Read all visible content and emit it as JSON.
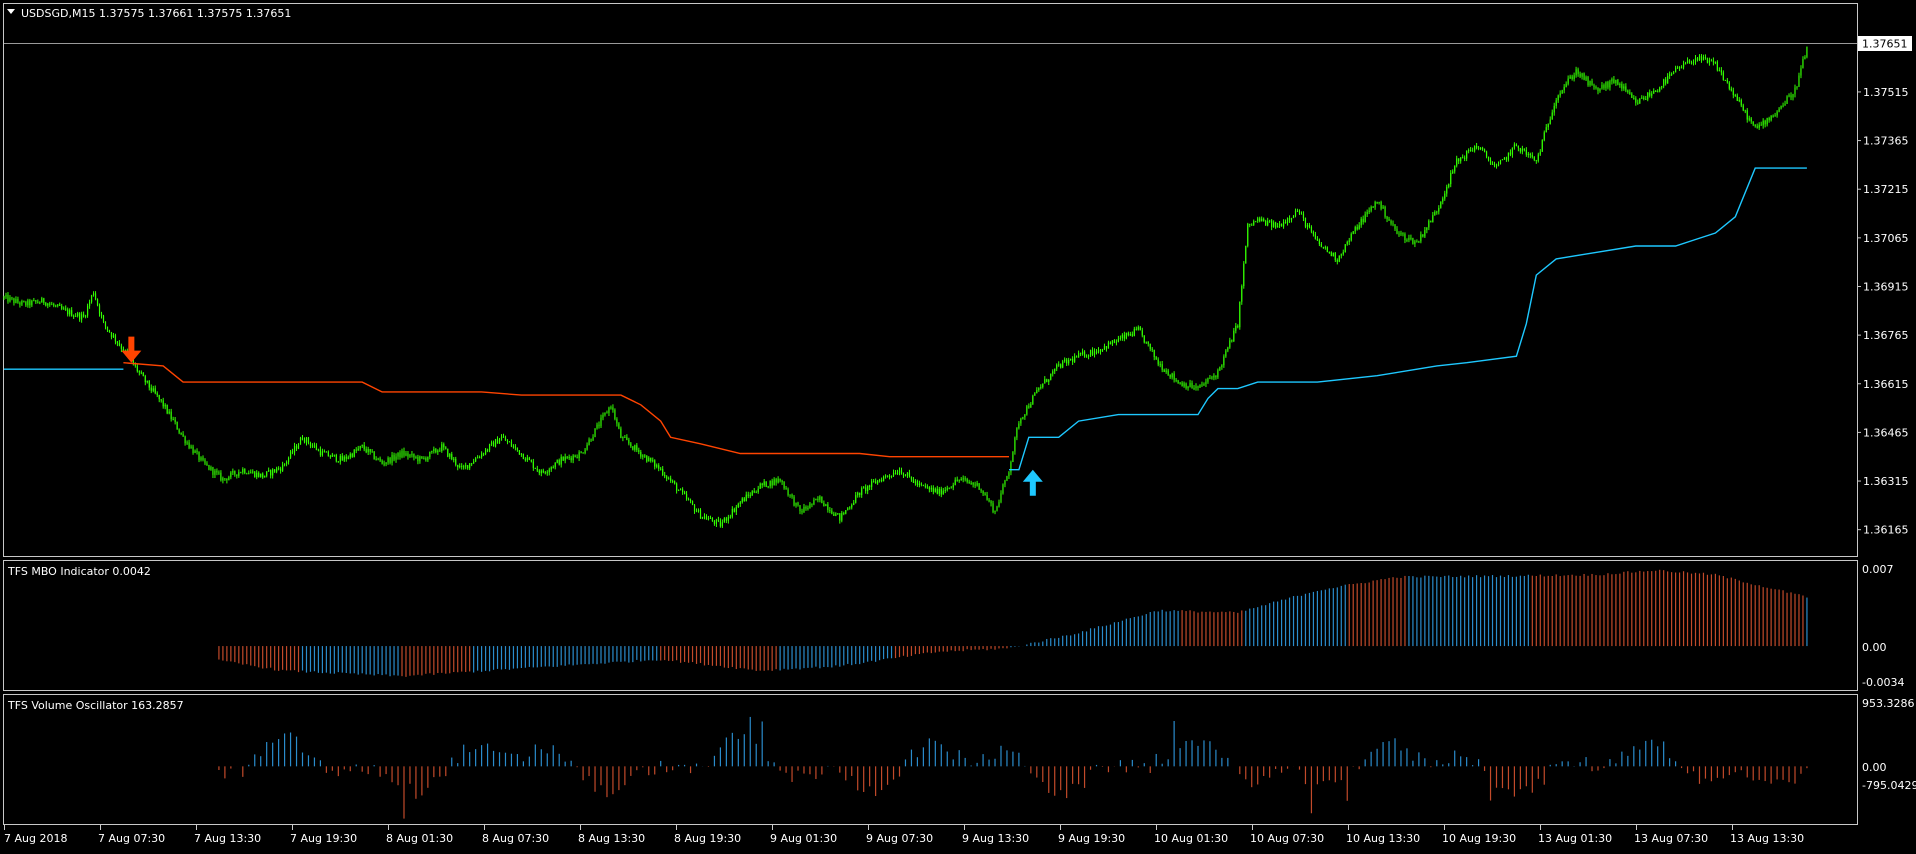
{
  "colors": {
    "background": "#000000",
    "frame": "#c8c8c8",
    "text": "#ffffff",
    "candle": "#33ff00",
    "trail_up": "#1ec8ff",
    "trail_down": "#ff4400",
    "bar_blue": "#2a8ccc",
    "bar_red": "#c24a2a"
  },
  "chart_data": [
    {
      "type": "candlestick",
      "title": "USDSGD,M15  1.37575 1.37661 1.37575 1.37651",
      "symbol": "USDSGD",
      "timeframe": "M15",
      "ohlc_last": {
        "open": 1.37575,
        "high": 1.37661,
        "low": 1.37575,
        "close": 1.37651
      },
      "current_price_label": "1.37651",
      "y_ticks": [
        "1.37515",
        "1.37365",
        "1.37215",
        "1.37065",
        "1.36915",
        "1.36765",
        "1.36615",
        "1.36465",
        "1.36315",
        "1.36165"
      ],
      "ylim": [
        1.3609,
        1.3778
      ],
      "x_tick_labels": [
        "7 Aug 2018",
        "7 Aug 07:30",
        "7 Aug 13:30",
        "7 Aug 19:30",
        "8 Aug 01:30",
        "8 Aug 07:30",
        "8 Aug 13:30",
        "8 Aug 19:30",
        "9 Aug 01:30",
        "9 Aug 07:30",
        "9 Aug 13:30",
        "9 Aug 19:30",
        "10 Aug 01:30",
        "10 Aug 07:30",
        "10 Aug 13:30",
        "10 Aug 19:30",
        "13 Aug 01:30",
        "13 Aug 07:30",
        "13 Aug 13:30"
      ],
      "close_path": [
        [
          0,
          1.3688
        ],
        [
          10,
          1.3686
        ],
        [
          20,
          1.3687
        ],
        [
          30,
          1.3684
        ],
        [
          40,
          1.3682
        ],
        [
          45,
          1.369
        ],
        [
          50,
          1.368
        ],
        [
          60,
          1.3672
        ],
        [
          70,
          1.3663
        ],
        [
          80,
          1.3655
        ],
        [
          90,
          1.3645
        ],
        [
          100,
          1.3637
        ],
        [
          110,
          1.3632
        ],
        [
          120,
          1.3635
        ],
        [
          130,
          1.3633
        ],
        [
          140,
          1.3636
        ],
        [
          150,
          1.3645
        ],
        [
          160,
          1.364
        ],
        [
          170,
          1.3638
        ],
        [
          180,
          1.3642
        ],
        [
          190,
          1.3637
        ],
        [
          200,
          1.364
        ],
        [
          210,
          1.3638
        ],
        [
          220,
          1.3642
        ],
        [
          230,
          1.3635
        ],
        [
          240,
          1.364
        ],
        [
          250,
          1.3645
        ],
        [
          260,
          1.364
        ],
        [
          270,
          1.3634
        ],
        [
          280,
          1.3638
        ],
        [
          290,
          1.364
        ],
        [
          300,
          1.365
        ],
        [
          305,
          1.3655
        ],
        [
          310,
          1.3645
        ],
        [
          320,
          1.364
        ],
        [
          330,
          1.3635
        ],
        [
          340,
          1.3628
        ],
        [
          350,
          1.3621
        ],
        [
          360,
          1.3618
        ],
        [
          370,
          1.3625
        ],
        [
          380,
          1.363
        ],
        [
          390,
          1.3632
        ],
        [
          400,
          1.3622
        ],
        [
          410,
          1.3626
        ],
        [
          420,
          1.362
        ],
        [
          430,
          1.3628
        ],
        [
          440,
          1.3632
        ],
        [
          450,
          1.3635
        ],
        [
          460,
          1.363
        ],
        [
          470,
          1.3628
        ],
        [
          480,
          1.3632
        ],
        [
          490,
          1.363
        ],
        [
          498,
          1.3622
        ],
        [
          505,
          1.3635
        ],
        [
          510,
          1.365
        ],
        [
          520,
          1.366
        ],
        [
          530,
          1.3667
        ],
        [
          540,
          1.367
        ],
        [
          550,
          1.3672
        ],
        [
          560,
          1.3675
        ],
        [
          570,
          1.3678
        ],
        [
          580,
          1.3668
        ],
        [
          590,
          1.3662
        ],
        [
          600,
          1.366
        ],
        [
          610,
          1.3665
        ],
        [
          620,
          1.368
        ],
        [
          625,
          1.371
        ],
        [
          630,
          1.3712
        ],
        [
          640,
          1.371
        ],
        [
          650,
          1.3715
        ],
        [
          660,
          1.3705
        ],
        [
          670,
          1.37
        ],
        [
          680,
          1.371
        ],
        [
          690,
          1.3718
        ],
        [
          700,
          1.3708
        ],
        [
          710,
          1.3705
        ],
        [
          720,
          1.3715
        ],
        [
          730,
          1.373
        ],
        [
          740,
          1.3735
        ],
        [
          750,
          1.3728
        ],
        [
          760,
          1.3735
        ],
        [
          770,
          1.373
        ],
        [
          780,
          1.375
        ],
        [
          790,
          1.3758
        ],
        [
          800,
          1.3752
        ],
        [
          810,
          1.3755
        ],
        [
          820,
          1.3748
        ],
        [
          830,
          1.3752
        ],
        [
          840,
          1.3758
        ],
        [
          850,
          1.3762
        ],
        [
          860,
          1.376
        ],
        [
          870,
          1.375
        ],
        [
          880,
          1.374
        ],
        [
          890,
          1.3745
        ],
        [
          900,
          1.3752
        ],
        [
          906,
          1.3765
        ]
      ],
      "series": [
        {
          "name": "",
          "color": "#1ec8ff",
          "segments": [
            [
              [
                0,
                1.3666
              ],
              [
                60,
                1.3666
              ]
            ],
            [
              [
                505,
                1.3635
              ],
              [
                510,
                1.3635
              ],
              [
                515,
                1.3645
              ],
              [
                530,
                1.3645
              ],
              [
                540,
                1.365
              ],
              [
                560,
                1.3652
              ],
              [
                600,
                1.3652
              ],
              [
                605,
                1.3657
              ],
              [
                610,
                1.366
              ],
              [
                620,
                1.366
              ],
              [
                630,
                1.3662
              ],
              [
                660,
                1.3662
              ],
              [
                690,
                1.3664
              ],
              [
                710,
                1.3666
              ],
              [
                720,
                1.3667
              ],
              [
                735,
                1.3668
              ],
              [
                760,
                1.367
              ],
              [
                765,
                1.368
              ],
              [
                770,
                1.3695
              ],
              [
                780,
                1.37
              ],
              [
                800,
                1.3702
              ],
              [
                820,
                1.3704
              ],
              [
                840,
                1.3704
              ],
              [
                850,
                1.3706
              ],
              [
                860,
                1.3708
              ],
              [
                870,
                1.3713
              ],
              [
                880,
                1.3728
              ],
              [
                906,
                1.3728
              ]
            ]
          ]
        },
        {
          "name": "",
          "color": "#ff4400",
          "segments": [
            [
              [
                60,
                1.3668
              ],
              [
                80,
                1.3667
              ],
              [
                90,
                1.3662
              ],
              [
                100,
                1.3662
              ],
              [
                180,
                1.3662
              ],
              [
                190,
                1.3659
              ],
              [
                240,
                1.3659
              ],
              [
                260,
                1.3658
              ],
              [
                310,
                1.3658
              ],
              [
                320,
                1.3655
              ],
              [
                330,
                1.365
              ],
              [
                335,
                1.3645
              ],
              [
                350,
                1.3643
              ],
              [
                370,
                1.364
              ],
              [
                430,
                1.364
              ],
              [
                445,
                1.3639
              ],
              [
                505,
                1.3639
              ]
            ]
          ]
        }
      ],
      "signals": [
        {
          "x": 64,
          "type": "sell",
          "y": 1.3668
        },
        {
          "x": 517,
          "type": "buy",
          "y": 1.3635
        }
      ]
    },
    {
      "type": "bar",
      "title": "TFS MBO Indicator 0.0042",
      "y_ticks": [
        "0.007",
        "0.00",
        "-0.0034"
      ],
      "ylim": [
        -0.0034,
        0.007
      ],
      "bar_start": 108,
      "bar_end": 906,
      "envelope": [
        [
          108,
          -0.0013
        ],
        [
          140,
          -0.0022
        ],
        [
          200,
          -0.0027
        ],
        [
          260,
          -0.002
        ],
        [
          330,
          -0.0012
        ],
        [
          380,
          -0.0022
        ],
        [
          420,
          -0.0018
        ],
        [
          470,
          -0.0005
        ],
        [
          505,
          -0.0002
        ],
        [
          540,
          0.0012
        ],
        [
          580,
          0.0032
        ],
        [
          620,
          0.003
        ],
        [
          660,
          0.005
        ],
        [
          700,
          0.0062
        ],
        [
          760,
          0.0063
        ],
        [
          800,
          0.0064
        ],
        [
          830,
          0.0068
        ],
        [
          860,
          0.0064
        ],
        [
          906,
          0.0044
        ]
      ],
      "color_runs": [
        [
          108,
          150,
          "red"
        ],
        [
          150,
          200,
          "blue"
        ],
        [
          200,
          236,
          "red"
        ],
        [
          236,
          330,
          "blue"
        ],
        [
          330,
          390,
          "red"
        ],
        [
          390,
          448,
          "blue"
        ],
        [
          448,
          505,
          "red"
        ],
        [
          505,
          592,
          "blue"
        ],
        [
          592,
          624,
          "red"
        ],
        [
          624,
          675,
          "blue"
        ],
        [
          675,
          705,
          "red"
        ],
        [
          705,
          768,
          "blue"
        ],
        [
          768,
          830,
          "red"
        ],
        [
          830,
          906,
          "red"
        ]
      ]
    },
    {
      "type": "bar",
      "title": "TFS Volume Oscillator 163.2857",
      "y_ticks": [
        "953.3286",
        "0.00",
        "-795.0429"
      ],
      "ylim": [
        -795.0429,
        953.3286
      ],
      "bar_start": 108,
      "bar_end": 906
    }
  ]
}
